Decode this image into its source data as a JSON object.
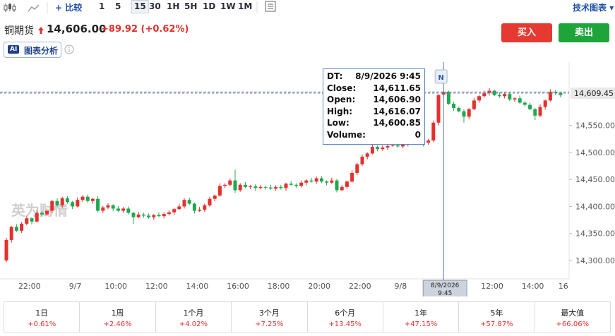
{
  "toolbar": {
    "compare": "比较",
    "intervals": [
      "1",
      "5",
      "15",
      "30",
      "1H",
      "5H",
      "1D",
      "1W",
      "1M"
    ],
    "technical": "技术图表"
  },
  "header": {
    "name": "铜期货",
    "price": "14,606.00",
    "change": "+89.92 (+0.62%)",
    "buy": "买入",
    "sell": "卖出",
    "ai_badge": "AI",
    "ai_label": "图表分析"
  },
  "chart_data": {
    "type": "candlestick",
    "categories": [
      null,
      null,
      null,
      null,
      "22:00",
      null,
      null,
      null,
      null,
      null,
      null,
      null,
      null,
      "9/7",
      null,
      null,
      null,
      null,
      null,
      null,
      null,
      "10:00",
      null,
      null,
      null,
      null,
      null,
      null,
      null,
      "12:00",
      null,
      null,
      null,
      null,
      null,
      null,
      null,
      "14:00",
      null,
      null,
      null,
      null,
      null,
      null,
      null,
      "16:00",
      null,
      null,
      null,
      null,
      null,
      null,
      null,
      "18:00",
      null,
      null,
      null,
      null,
      null,
      null,
      null,
      "20:00",
      null,
      null,
      null,
      null,
      null,
      null,
      null,
      "22:00",
      null,
      null,
      null,
      null,
      null,
      null,
      null,
      "9/8",
      null,
      null,
      null,
      null,
      null,
      null,
      null,
      null,
      null,
      null,
      null,
      null,
      null,
      null,
      null,
      null,
      null,
      "12:00",
      null,
      null,
      null,
      null,
      null,
      null,
      null,
      "14:00",
      null,
      null,
      null,
      null,
      null,
      "16"
    ],
    "open": [
      14300,
      14338,
      14362,
      14355,
      14368,
      14378,
      14372,
      14388,
      14385,
      14392,
      14410,
      14402,
      14415,
      14408,
      14400,
      14412,
      14418,
      14410,
      14414,
      14392,
      14398,
      14402,
      14396,
      14392,
      14396,
      14388,
      14380,
      14385,
      14383,
      14380,
      14384,
      14382,
      14386,
      14389,
      14395,
      14400,
      14412,
      14405,
      14392,
      14394,
      14402,
      14414,
      14420,
      14438,
      14440,
      14448,
      14430,
      14440,
      14436,
      14437,
      14434,
      14436,
      14435,
      14433,
      14436,
      14434,
      14442,
      14440,
      14438,
      14444,
      14448,
      14446,
      14452,
      14446,
      14444,
      14448,
      14430,
      14436,
      14446,
      14462,
      14478,
      14492,
      14498,
      14510,
      14506,
      14509,
      14512,
      14513,
      14511,
      14516,
      14521,
      14526,
      14520,
      14518,
      14522,
      14555,
      14606.9,
      14611.65,
      14590,
      14582,
      14576,
      14566,
      14580,
      14596,
      14604,
      14610,
      14614,
      14606,
      14604,
      14608,
      14598,
      14600,
      14592,
      14588,
      14580,
      14568,
      14584,
      14596,
      14612,
      14610
    ],
    "high": [
      14342,
      14364,
      14367,
      14371,
      14382,
      14380,
      14393,
      14391,
      14396,
      14412,
      14415,
      14418,
      14419,
      14410,
      14417,
      14421,
      14422,
      14416,
      14419,
      14401,
      14406,
      14404,
      14401,
      14399,
      14400,
      14390,
      14390,
      14388,
      14387,
      14386,
      14389,
      14389,
      14393,
      14397,
      14405,
      14415,
      14416,
      14407,
      14399,
      14405,
      14418,
      14422,
      14443,
      14443,
      14452,
      14468,
      14443,
      14445,
      14440,
      14441,
      14440,
      14438,
      14440,
      14439,
      14440,
      14444,
      14447,
      14443,
      14448,
      14450,
      14453,
      14455,
      14456,
      14448,
      14453,
      14451,
      14440,
      14448,
      14467,
      14481,
      14496,
      14500,
      14515,
      14513,
      14513,
      14514,
      14518,
      14516,
      14520,
      14523,
      14531,
      14529,
      14524,
      14525,
      14559,
      14608,
      14616.07,
      14614,
      14594,
      14585,
      14580,
      14582,
      14601,
      14607,
      14614,
      14619,
      14616,
      14611,
      14611,
      14612,
      14602,
      14605,
      14595,
      14592,
      14582,
      14589,
      14598,
      14617,
      14615,
      14612
    ],
    "low": [
      14297,
      14333,
      14353,
      14351,
      14365,
      14367,
      14370,
      14381,
      14382,
      14387,
      14400,
      14398,
      14405,
      14395,
      14398,
      14408,
      14407,
      14405,
      14390,
      14388,
      14395,
      14391,
      14390,
      14388,
      14385,
      14368,
      14378,
      14379,
      14377,
      14375,
      14380,
      14378,
      14383,
      14384,
      14393,
      14396,
      14402,
      14387,
      14390,
      14390,
      14399,
      14409,
      14418,
      14434,
      14437,
      14425,
      14427,
      14434,
      14432,
      14429,
      14431,
      14431,
      14431,
      14429,
      14431,
      14429,
      14438,
      14434,
      14435,
      14439,
      14444,
      14442,
      14443,
      14439,
      14442,
      14426,
      14428,
      14432,
      14444,
      14458,
      14475,
      14487,
      14496,
      14502,
      14503,
      14504,
      14510,
      14509,
      14508,
      14511,
      14519,
      14516,
      14511,
      14514,
      14519,
      14550,
      14600.85,
      14588,
      14577,
      14574,
      14555,
      14561,
      14578,
      14592,
      14601,
      14605,
      14604,
      14601,
      14600,
      14595,
      14593,
      14590,
      14584,
      14578,
      14560,
      14565,
      14579,
      14594,
      14606,
      14602
    ],
    "close": [
      14338,
      14362,
      14355,
      14368,
      14378,
      14372,
      14388,
      14385,
      14392,
      14410,
      14402,
      14415,
      14408,
      14400,
      14412,
      14418,
      14410,
      14414,
      14392,
      14398,
      14402,
      14396,
      14392,
      14396,
      14388,
      14380,
      14385,
      14383,
      14380,
      14384,
      14382,
      14386,
      14389,
      14395,
      14400,
      14412,
      14405,
      14392,
      14394,
      14402,
      14414,
      14420,
      14438,
      14440,
      14448,
      14430,
      14440,
      14436,
      14437,
      14434,
      14436,
      14435,
      14433,
      14436,
      14434,
      14442,
      14440,
      14438,
      14444,
      14448,
      14446,
      14452,
      14446,
      14444,
      14448,
      14430,
      14436,
      14446,
      14462,
      14478,
      14492,
      14498,
      14510,
      14506,
      14509,
      14512,
      14513,
      14511,
      14516,
      14521,
      14526,
      14520,
      14518,
      14522,
      14555,
      14606,
      14611.65,
      14590,
      14582,
      14576,
      14566,
      14580,
      14596,
      14604,
      14610,
      14614,
      14606,
      14604,
      14608,
      14598,
      14600,
      14592,
      14588,
      14580,
      14568,
      14584,
      14596,
      14612,
      14610,
      14606
    ],
    "up_color": "#e3312d",
    "down_color": "#1fa84f",
    "ylim": [
      14266,
      14667
    ],
    "yticks": [
      {
        "value": 14300,
        "label": "14,300.00"
      },
      {
        "value": 14350,
        "label": "14,350.00"
      },
      {
        "value": 14400,
        "label": "14,400.00"
      },
      {
        "value": 14450,
        "label": "14,450.00"
      },
      {
        "value": 14500,
        "label": "14,500.00"
      },
      {
        "value": 14550,
        "label": "14,550.00"
      }
    ],
    "last_price": {
      "value": 14609.45,
      "label": "14,609.45"
    },
    "marker": "N",
    "watermark": "英为财情",
    "crosshair_label": [
      "8/9/2026",
      "9:45"
    ],
    "tooltip": [
      [
        "DT:",
        "8/9/2026 9:45"
      ],
      [
        "Close:",
        "14,611.65"
      ],
      [
        "Open:",
        "14,606.90"
      ],
      [
        "High:",
        "14,616.07"
      ],
      [
        "Low:",
        "14,600.85"
      ],
      [
        "Volume:",
        "0"
      ]
    ]
  },
  "periods": [
    {
      "label": "1日",
      "change": "+0.61%"
    },
    {
      "label": "1周",
      "change": "+2.46%"
    },
    {
      "label": "1个月",
      "change": "+4.02%"
    },
    {
      "label": "3个月",
      "change": "+7.25%"
    },
    {
      "label": "6个月",
      "change": "+13.45%"
    },
    {
      "label": "1年",
      "change": "+47.15%"
    },
    {
      "label": "5年",
      "change": "+57.87%"
    },
    {
      "label": "最大值",
      "change": "+66.06%"
    }
  ]
}
